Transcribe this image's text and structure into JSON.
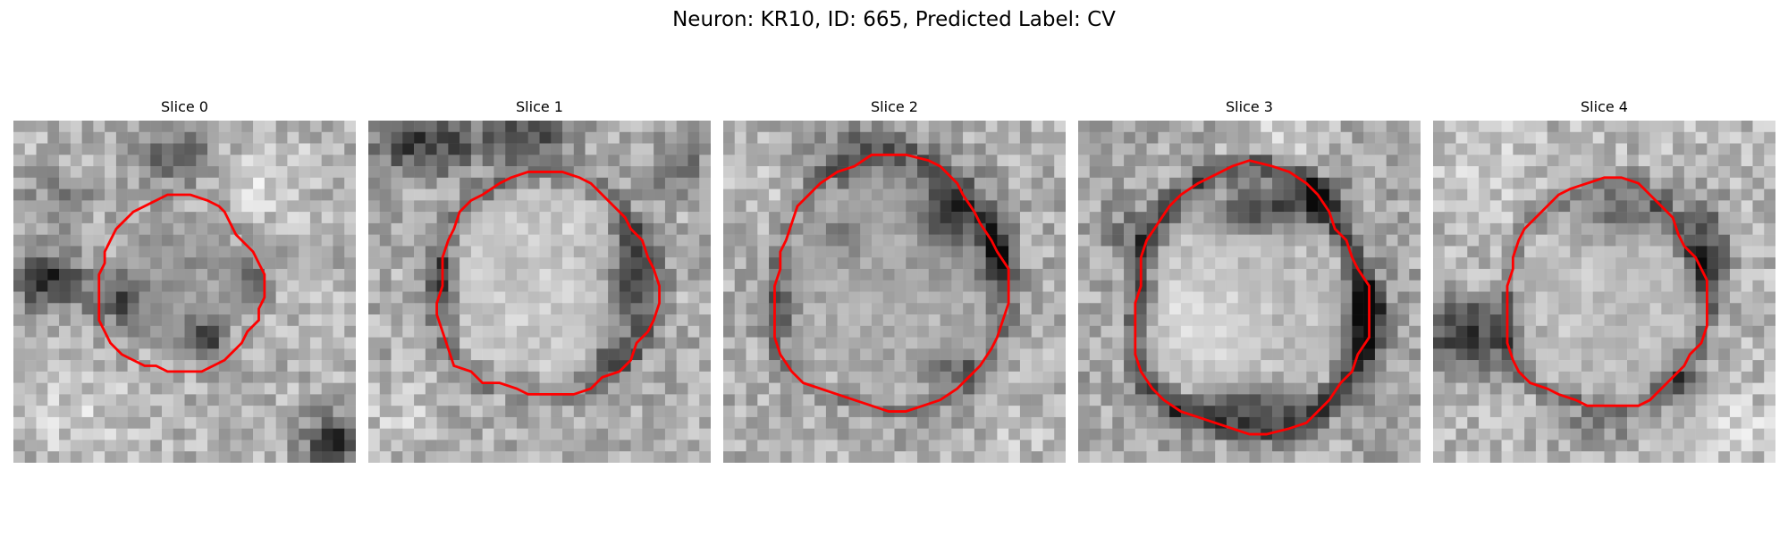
{
  "figure": {
    "title": "Neuron: KR10, ID: 665, Predicted Label: CV"
  },
  "panels": [
    {
      "title": "Slice 0",
      "image": "grayscale electron microscopy patch",
      "outline": "red neuron contour",
      "dark_regions": [
        "left-center",
        "lower-center",
        "bottom-right"
      ]
    },
    {
      "title": "Slice 1",
      "image": "grayscale electron microscopy patch",
      "outline": "red neuron contour",
      "dark_regions": [
        "top-left",
        "left-edge",
        "right-edge",
        "lower-right"
      ]
    },
    {
      "title": "Slice 2",
      "image": "grayscale electron microscopy patch",
      "outline": "red neuron contour",
      "dark_regions": [
        "top-right",
        "right-edge",
        "lower-right"
      ]
    },
    {
      "title": "Slice 3",
      "image": "grayscale electron microscopy patch",
      "outline": "red neuron contour",
      "dark_regions": [
        "upper-center",
        "right-edge",
        "lower-center"
      ]
    },
    {
      "title": "Slice 4",
      "image": "grayscale electron microscopy patch",
      "outline": "red neuron contour",
      "dark_regions": [
        "upper-center",
        "left-edge",
        "right-edge"
      ]
    }
  ],
  "style": {
    "outline_color": "#ff0000",
    "colormap": "grayscale"
  }
}
